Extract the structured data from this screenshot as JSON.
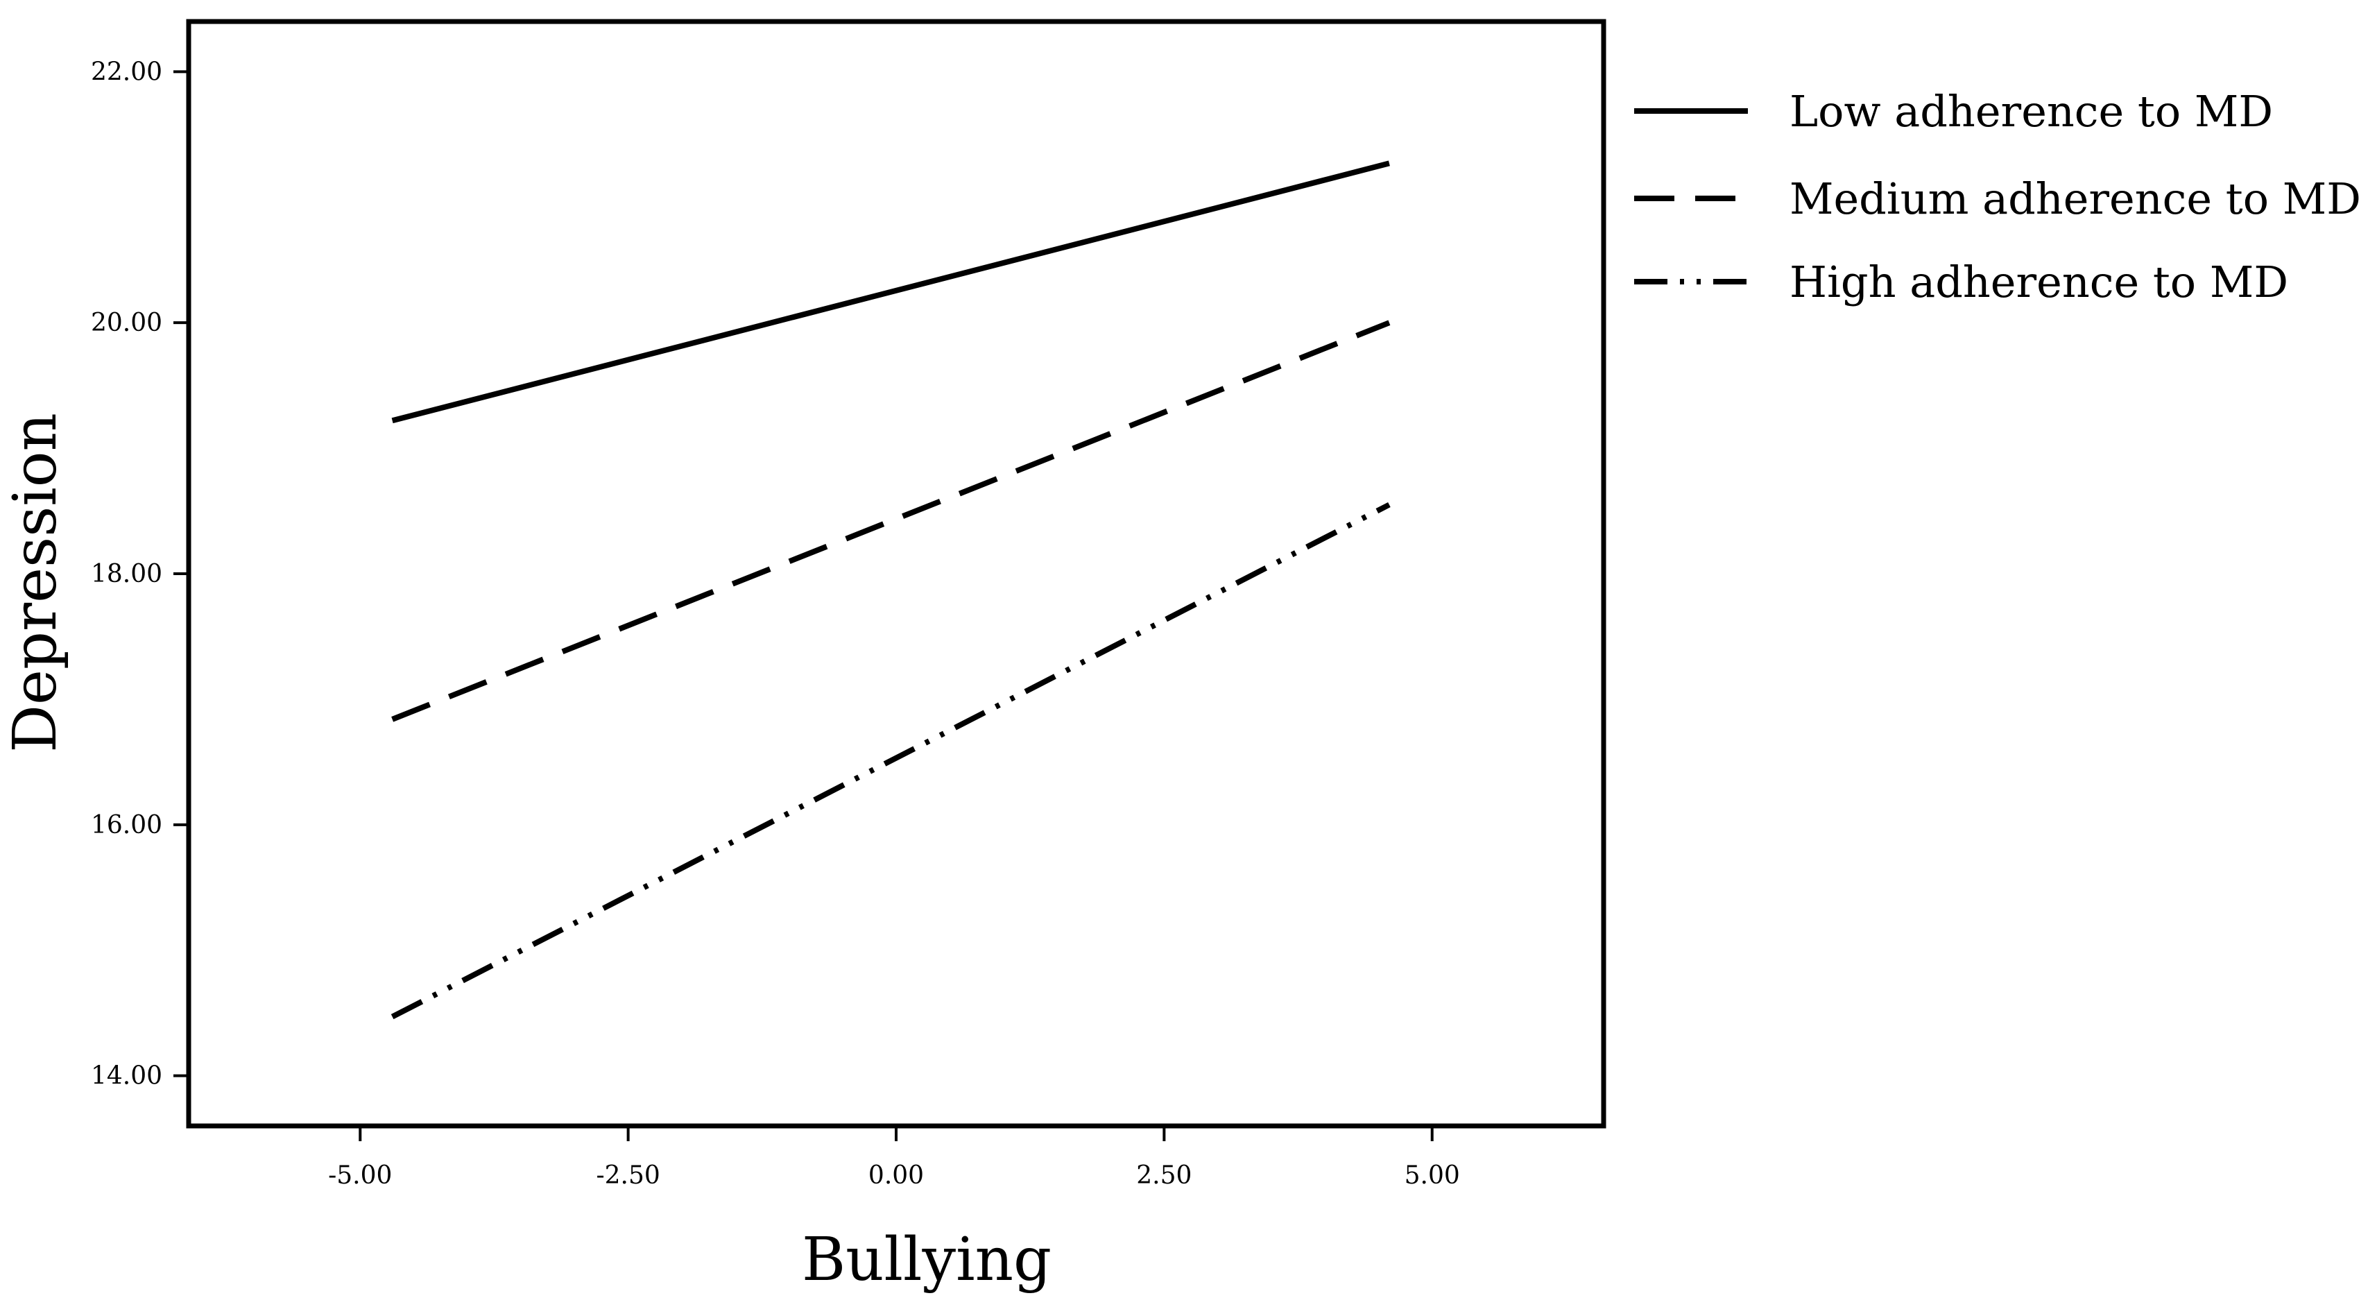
{
  "chart_data": {
    "type": "line",
    "title": "",
    "xlabel": "Bullying",
    "ylabel": "Depression",
    "xlim": [
      -6.6,
      6.6
    ],
    "ylim": [
      13.6,
      22.4
    ],
    "x_ticks": [
      "-5.00",
      "-2.50",
      "0.00",
      "2.50",
      "5.00"
    ],
    "x_tick_values": [
      -5,
      -2.5,
      0,
      2.5,
      5
    ],
    "y_ticks": [
      "22.00",
      "20.00",
      "18.00",
      "16.00",
      "14.00"
    ],
    "y_tick_values": [
      22,
      20,
      18,
      16,
      14
    ],
    "grid": false,
    "legend_position": "right",
    "series": [
      {
        "name": "Low adherence to MD",
        "style": "solid",
        "x": [
          -4.7,
          4.6
        ],
        "y": [
          19.22,
          21.27
        ]
      },
      {
        "name": "Medium adherence to MD",
        "style": "dashed",
        "x": [
          -4.7,
          4.6
        ],
        "y": [
          16.84,
          20.0
        ]
      },
      {
        "name": "High adherence to MD",
        "style": "dash-dot-dot",
        "x": [
          -4.7,
          4.6
        ],
        "y": [
          14.47,
          18.55
        ]
      }
    ],
    "colors": {
      "line": "#000000",
      "background": "#ffffff"
    }
  }
}
